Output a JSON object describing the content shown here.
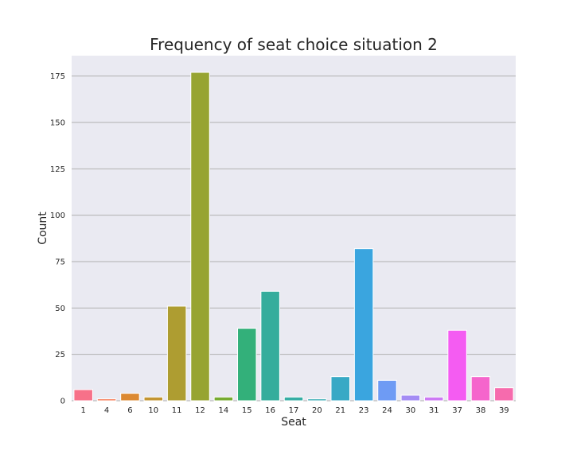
{
  "chart_data": {
    "type": "bar",
    "title": "Frequency of seat choice situation 2",
    "xlabel": "Seat",
    "ylabel": "Count",
    "categories": [
      "1",
      "4",
      "6",
      "10",
      "11",
      "12",
      "14",
      "15",
      "16",
      "17",
      "20",
      "21",
      "23",
      "24",
      "30",
      "31",
      "37",
      "38",
      "39"
    ],
    "values": [
      6,
      1,
      4,
      2,
      51,
      177,
      2,
      39,
      59,
      2,
      1,
      13,
      82,
      11,
      3,
      2,
      38,
      13,
      7
    ],
    "ylim": [
      0,
      186
    ],
    "yticks": [
      0,
      25,
      50,
      75,
      100,
      125,
      150,
      175
    ],
    "grid": "y",
    "legend": "none",
    "colors": [
      "#f77189",
      "#f7754f",
      "#dc8932",
      "#c39532",
      "#ae9d31",
      "#97a431",
      "#77ab31",
      "#33b07a",
      "#35ad9c",
      "#36ada4",
      "#37abb4",
      "#38a9c5",
      "#3aa5df",
      "#6e9bf4",
      "#a48cf4",
      "#cc7af4",
      "#f45cf2",
      "#f565cc",
      "#f66bad"
    ],
    "background": "#eaeaf2"
  }
}
